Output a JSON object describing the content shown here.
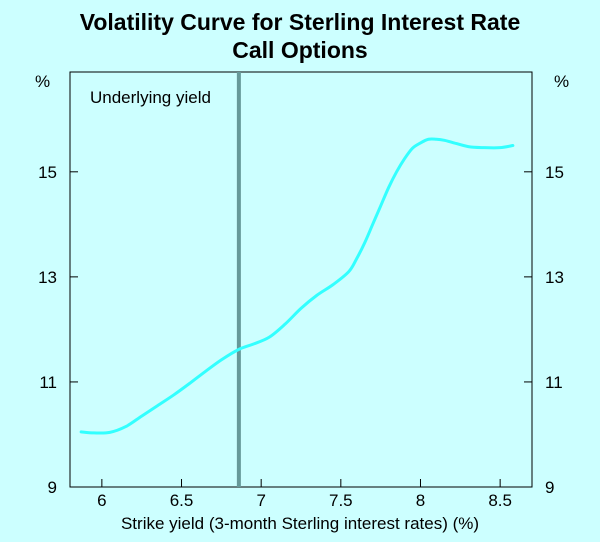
{
  "chart_data": {
    "type": "line",
    "title": "Volatility Curve for Sterling Interest Rate Call Options",
    "title_lines": [
      "Volatility Curve for Sterling Interest Rate",
      "Call Options"
    ],
    "xlabel": "Strike yield (3-month Sterling interest rates) (%)",
    "ylabel_left": "%",
    "ylabel_right": "%",
    "xlim": [
      5.8,
      8.7
    ],
    "ylim": [
      9,
      16.9
    ],
    "x_ticks": [
      6,
      6.5,
      7,
      7.5,
      8,
      8.5
    ],
    "x_tick_labels": [
      "6",
      "6.5",
      "7",
      "7.5",
      "8",
      "8.5"
    ],
    "y_ticks": [
      9,
      11,
      13,
      15
    ],
    "y_tick_labels": [
      "9",
      "11",
      "13",
      "15"
    ],
    "grid": false,
    "line_color": "#33ffff",
    "marker_color": "#669999",
    "annotation": {
      "text": "Underlying yield",
      "x": 6.86
    },
    "series": [
      {
        "x": [
          5.87,
          5.95,
          6.05,
          6.15,
          6.25,
          6.35,
          6.45,
          6.55,
          6.65,
          6.75,
          6.86,
          6.95,
          7.05,
          7.15,
          7.25,
          7.35,
          7.45,
          7.55,
          7.6,
          7.65,
          7.7,
          7.75,
          7.8,
          7.85,
          7.9,
          7.95,
          8.0,
          8.05,
          8.1,
          8.15,
          8.2,
          8.3,
          8.4,
          8.5,
          8.58
        ],
        "y": [
          10.05,
          10.03,
          10.04,
          10.15,
          10.35,
          10.55,
          10.75,
          10.97,
          11.2,
          11.42,
          11.62,
          11.72,
          11.85,
          12.1,
          12.4,
          12.65,
          12.85,
          13.1,
          13.35,
          13.65,
          14.0,
          14.35,
          14.7,
          15.0,
          15.25,
          15.45,
          15.55,
          15.62,
          15.62,
          15.6,
          15.56,
          15.48,
          15.46,
          15.46,
          15.5
        ]
      }
    ]
  }
}
